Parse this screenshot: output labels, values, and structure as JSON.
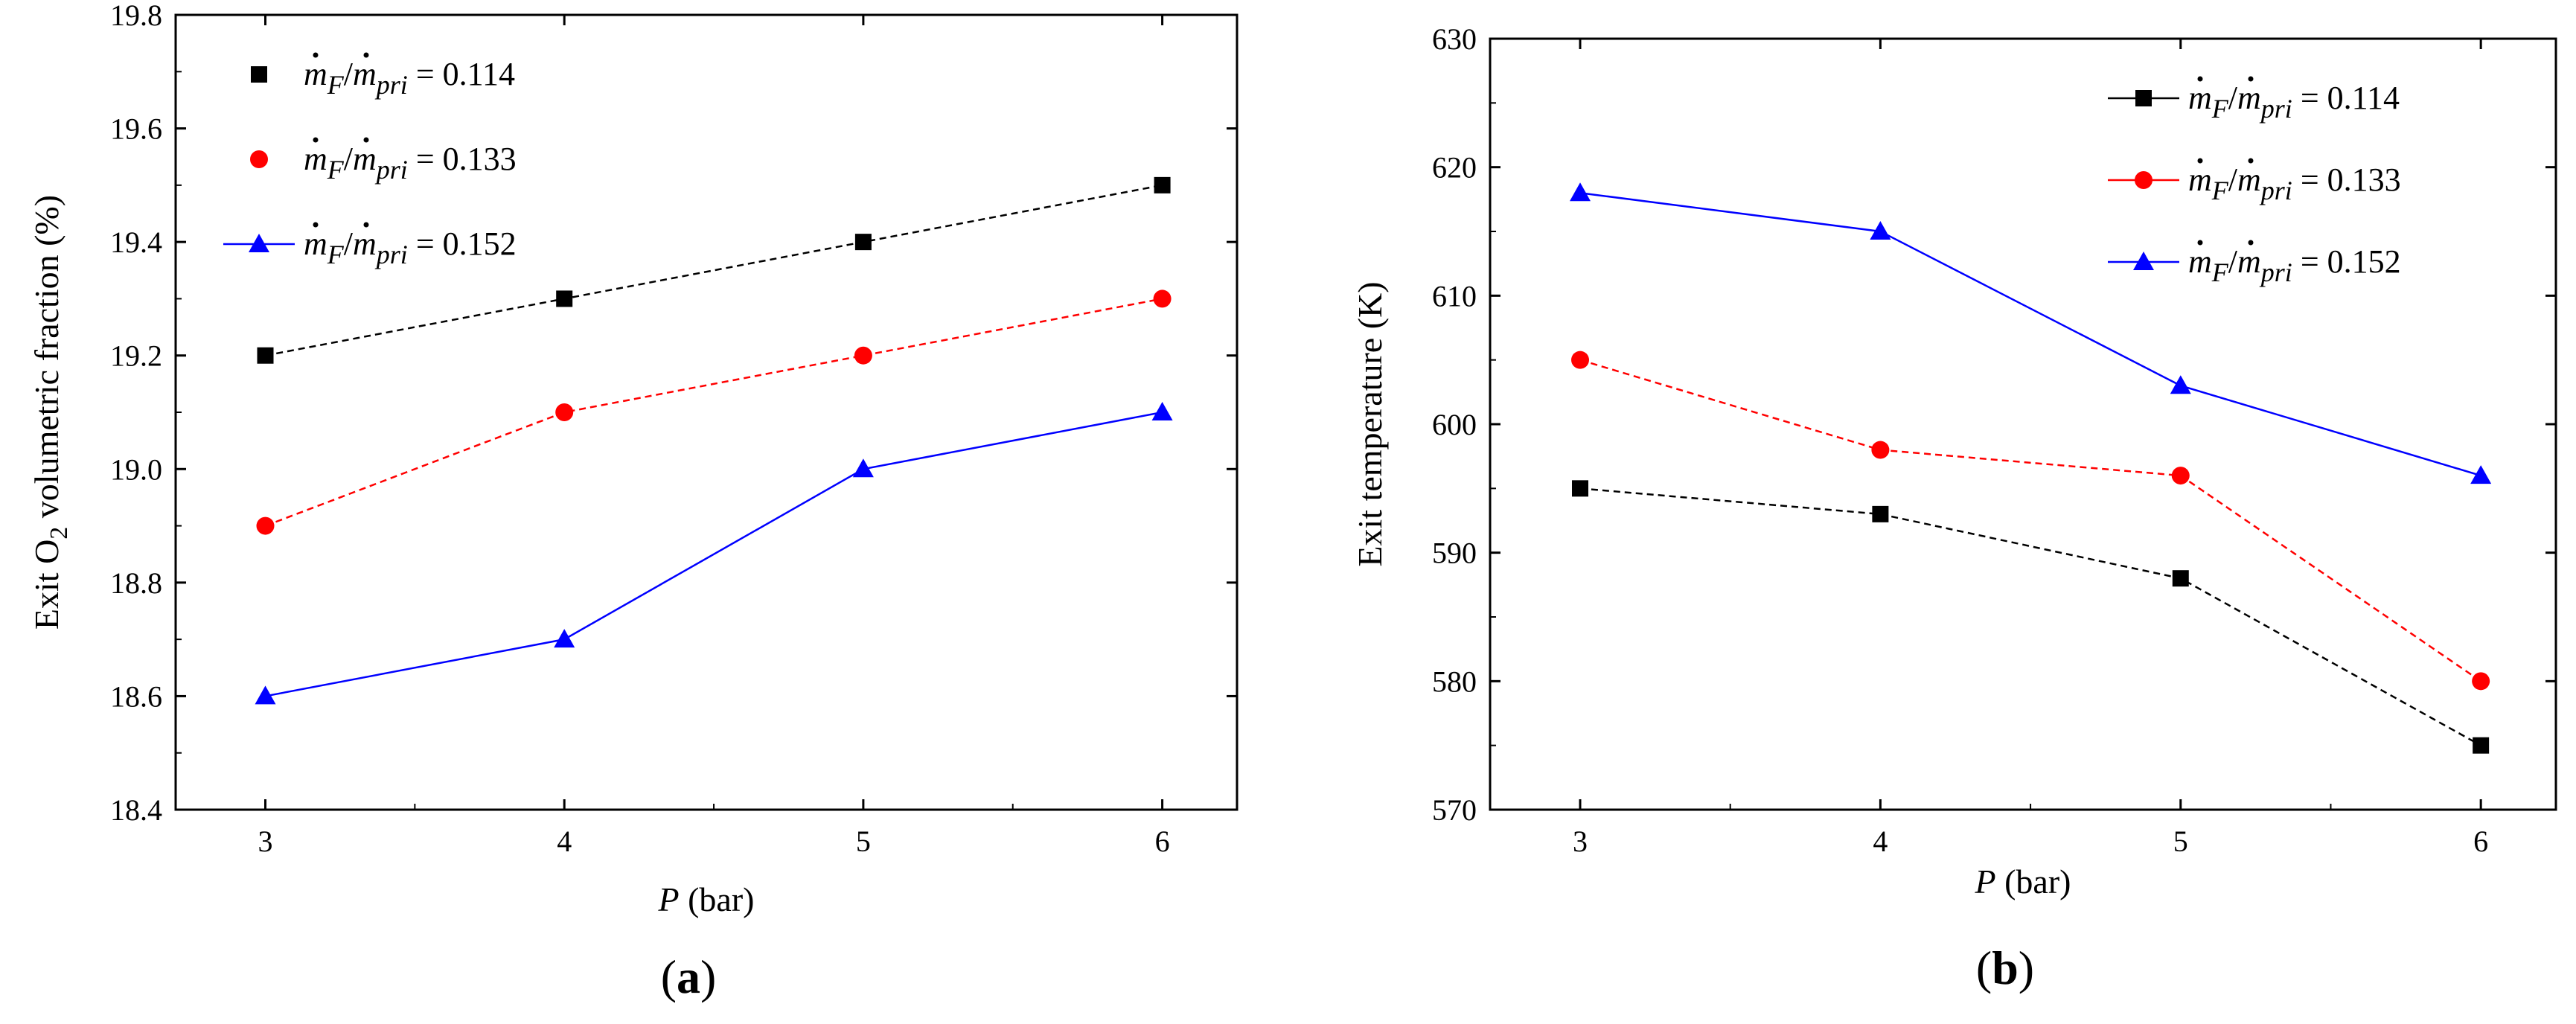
{
  "chart_data": [
    {
      "type": "line",
      "panel_label": {
        "open": "(",
        "letter": "a",
        "close": ")"
      },
      "x": [
        3,
        4,
        5,
        6
      ],
      "xlabel": {
        "var": "P",
        "unit": " (bar)"
      },
      "ylabel": {
        "pre": "Exit O",
        "sub": "2",
        "post": " volumetric fraction (%)"
      },
      "xlim": [
        2.7,
        6.25
      ],
      "ylim": [
        18.4,
        19.8
      ],
      "xticks": [
        "3",
        "4",
        "5",
        "6"
      ],
      "yticks": [
        "18.4",
        "18.6",
        "18.8",
        "19.0",
        "19.2",
        "19.4",
        "19.6",
        "19.8"
      ],
      "legend": {
        "placement": "top-left",
        "m": "m",
        "sub_f": "F",
        "slash": "/",
        "sub_pri": "pri"
      },
      "series": [
        {
          "name": "m_F/m_pri = 0.114",
          "value_text": " = 0.114",
          "values": [
            19.2,
            19.3,
            19.4,
            19.5
          ],
          "color": "#000000",
          "marker": "square",
          "dash": "dashed"
        },
        {
          "name": "m_F/m_pri = 0.133",
          "value_text": " = 0.133",
          "values": [
            18.9,
            19.1,
            19.2,
            19.3
          ],
          "color": "#ff0000",
          "marker": "circle",
          "dash": "dashed"
        },
        {
          "name": "m_F/m_pri = 0.152",
          "value_text": " = 0.152",
          "values": [
            18.6,
            18.7,
            19.0,
            19.1
          ],
          "color": "#0000ff",
          "marker": "triangle",
          "dash": "solid"
        }
      ]
    },
    {
      "type": "line",
      "panel_label": {
        "open": "(",
        "letter": "b",
        "close": ")"
      },
      "x": [
        3,
        4,
        5,
        6
      ],
      "xlabel": {
        "var": "P",
        "unit": " (bar)"
      },
      "ylabel": {
        "pre": "Exit temperature (K)",
        "sub": "",
        "post": ""
      },
      "xlim": [
        2.7,
        6.25
      ],
      "ylim": [
        570,
        630
      ],
      "xticks": [
        "3",
        "4",
        "5",
        "6"
      ],
      "yticks": [
        "570",
        "580",
        "590",
        "600",
        "610",
        "620",
        "630"
      ],
      "legend": {
        "placement": "top-right",
        "m": "m",
        "sub_f": "F",
        "slash": "/",
        "sub_pri": "pri"
      },
      "series": [
        {
          "name": "m_F/m_pri = 0.114",
          "value_text": " = 0.114",
          "values": [
            595,
            593,
            588,
            575
          ],
          "color": "#000000",
          "marker": "square",
          "dash": "dashed"
        },
        {
          "name": "m_F/m_pri = 0.133",
          "value_text": " = 0.133",
          "values": [
            605,
            598,
            596,
            580
          ],
          "color": "#ff0000",
          "marker": "circle",
          "dash": "dashed"
        },
        {
          "name": "m_F/m_pri = 0.152",
          "value_text": " = 0.152",
          "values": [
            618,
            615,
            603,
            596
          ],
          "color": "#0000ff",
          "marker": "triangle",
          "dash": "solid"
        }
      ]
    }
  ]
}
